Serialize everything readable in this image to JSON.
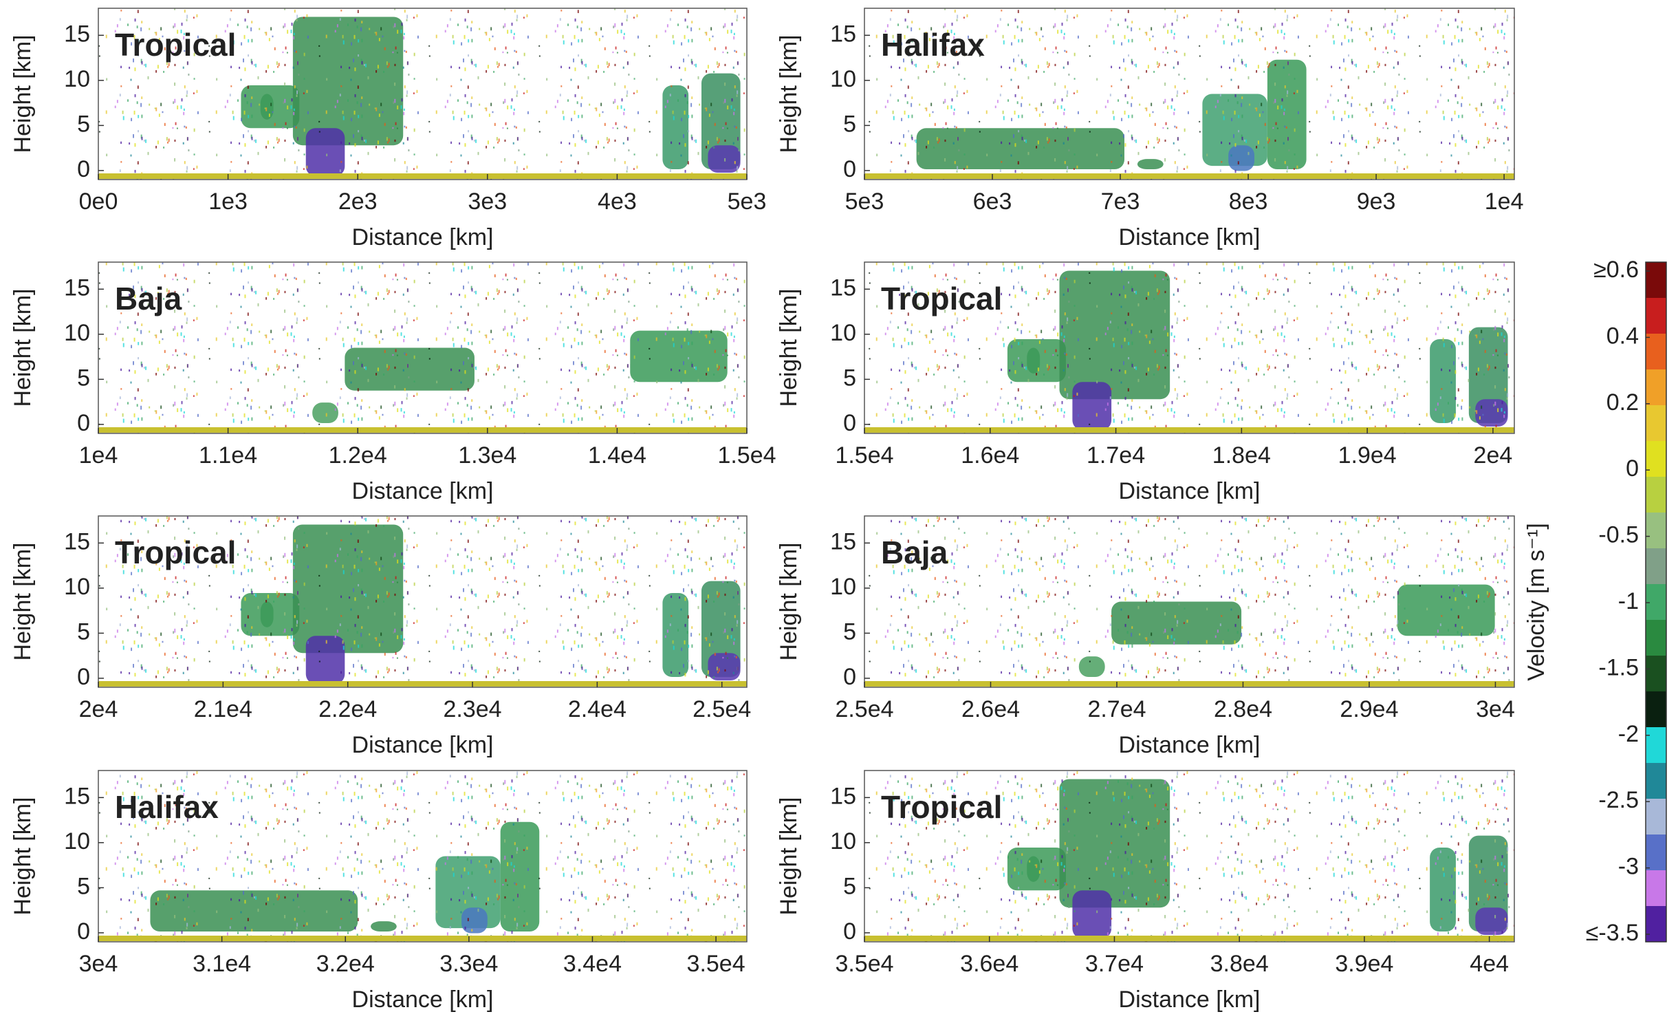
{
  "chart_data": [
    {
      "type": "curtain",
      "title": "Tropical",
      "title_color": "#000000",
      "xlabel": "Distance [km]",
      "ylabel": "Height [km]",
      "xlim": [
        0,
        5000
      ],
      "ylim": [
        -1,
        18
      ],
      "yticks": [
        0,
        5,
        10,
        15
      ],
      "xticks": [
        {
          "value": 0,
          "label": "0e0"
        },
        {
          "value": 1000,
          "label": "1e3"
        },
        {
          "value": 2000,
          "label": "2e3"
        },
        {
          "value": 3000,
          "label": "3e3"
        },
        {
          "value": 4000,
          "label": "4e3"
        },
        {
          "value": 5000,
          "label": "5e3"
        }
      ]
    },
    {
      "type": "curtain",
      "title": "Halifax",
      "title_color": "#5b2d86",
      "xlabel": "Distance [km]",
      "ylabel": "Height [km]",
      "xlim": [
        5000,
        10080
      ],
      "ylim": [
        -1,
        18
      ],
      "yticks": [
        0,
        5,
        10,
        15
      ],
      "xticks": [
        {
          "value": 5000,
          "label": "5e3"
        },
        {
          "value": 6000,
          "label": "6e3"
        },
        {
          "value": 7000,
          "label": "7e3"
        },
        {
          "value": 8000,
          "label": "8e3"
        },
        {
          "value": 9000,
          "label": "9e3"
        },
        {
          "value": 10000,
          "label": "1e4"
        }
      ]
    },
    {
      "type": "curtain",
      "title": "Baja",
      "title_color": "#2166b0",
      "xlabel": "Distance [km]",
      "ylabel": "Height [km]",
      "xlim": [
        10000,
        15000
      ],
      "ylim": [
        -1,
        18
      ],
      "yticks": [
        0,
        5,
        10,
        15
      ],
      "xticks": [
        {
          "value": 10000,
          "label": "1e4"
        },
        {
          "value": 11000,
          "label": "1.1e4"
        },
        {
          "value": 12000,
          "label": "1.2e4"
        },
        {
          "value": 13000,
          "label": "1.3e4"
        },
        {
          "value": 14000,
          "label": "1.4e4"
        },
        {
          "value": 15000,
          "label": "1.5e4"
        }
      ]
    },
    {
      "type": "curtain",
      "title": "Tropical",
      "title_color": "#5fa8e8",
      "xlabel": "Distance [km]",
      "ylabel": "Height [km]",
      "xlim": [
        15000,
        20170
      ],
      "ylim": [
        -1,
        18
      ],
      "yticks": [
        0,
        5,
        10,
        15
      ],
      "xticks": [
        {
          "value": 15000,
          "label": "1.5e4"
        },
        {
          "value": 16000,
          "label": "1.6e4"
        },
        {
          "value": 17000,
          "label": "1.7e4"
        },
        {
          "value": 18000,
          "label": "1.8e4"
        },
        {
          "value": 19000,
          "label": "1.9e4"
        },
        {
          "value": 20000,
          "label": "2e4"
        }
      ]
    },
    {
      "type": "curtain",
      "title": "Tropical",
      "title_color": "#1e9a3c",
      "xlabel": "Distance [km]",
      "ylabel": "Height [km]",
      "xlim": [
        20000,
        25200
      ],
      "ylim": [
        -1,
        18
      ],
      "yticks": [
        0,
        5,
        10,
        15
      ],
      "xticks": [
        {
          "value": 20000,
          "label": "2e4"
        },
        {
          "value": 21000,
          "label": "2.1e4"
        },
        {
          "value": 22000,
          "label": "2.2e4"
        },
        {
          "value": 23000,
          "label": "2.3e4"
        },
        {
          "value": 24000,
          "label": "2.4e4"
        },
        {
          "value": 25000,
          "label": "2.5e4"
        }
      ]
    },
    {
      "type": "curtain",
      "title": "Baja",
      "title_color": "#e8c53a",
      "xlabel": "Distance [km]",
      "ylabel": "Height [km]",
      "xlim": [
        25000,
        30150
      ],
      "ylim": [
        -1,
        18
      ],
      "yticks": [
        0,
        5,
        10,
        15
      ],
      "xticks": [
        {
          "value": 25000,
          "label": "2.5e4"
        },
        {
          "value": 26000,
          "label": "2.6e4"
        },
        {
          "value": 27000,
          "label": "2.7e4"
        },
        {
          "value": 28000,
          "label": "2.8e4"
        },
        {
          "value": 29000,
          "label": "2.9e4"
        },
        {
          "value": 30000,
          "label": "3e4"
        }
      ]
    },
    {
      "type": "curtain",
      "title": "Halifax",
      "title_color": "#e8812a",
      "xlabel": "Distance [km]",
      "ylabel": "Height [km]",
      "xlim": [
        30000,
        35250
      ],
      "ylim": [
        -1,
        18
      ],
      "yticks": [
        0,
        5,
        10,
        15
      ],
      "xticks": [
        {
          "value": 30000,
          "label": "3e4"
        },
        {
          "value": 31000,
          "label": "3.1e4"
        },
        {
          "value": 32000,
          "label": "3.2e4"
        },
        {
          "value": 33000,
          "label": "3.3e4"
        },
        {
          "value": 34000,
          "label": "3.4e4"
        },
        {
          "value": 35000,
          "label": "3.5e4"
        }
      ]
    },
    {
      "type": "curtain",
      "title": "Tropical",
      "title_color": "#c8281e",
      "xlabel": "Distance [km]",
      "ylabel": "Height [km]",
      "xlim": [
        35000,
        40200
      ],
      "ylim": [
        -1,
        18
      ],
      "yticks": [
        0,
        5,
        10,
        15
      ],
      "xticks": [
        {
          "value": 35000,
          "label": "3.5e4"
        },
        {
          "value": 36000,
          "label": "3.6e4"
        },
        {
          "value": 37000,
          "label": "3.7e4"
        },
        {
          "value": 38000,
          "label": "3.8e4"
        },
        {
          "value": 39000,
          "label": "3.9e4"
        },
        {
          "value": 40000,
          "label": "4e4"
        }
      ]
    }
  ],
  "colorbar": {
    "label": "Velocity [m s⁻¹]",
    "ticks": [
      {
        "value": 0.6,
        "label": "≥0.6"
      },
      0.4,
      0.2,
      0,
      -0.5,
      -1,
      -1.5,
      -2,
      -2.5,
      -3,
      {
        "value": -3.5,
        "label": "≤-3.5"
      }
    ],
    "colors": [
      "#7a0a0a",
      "#c81e1e",
      "#e8601e",
      "#f0a028",
      "#e8c830",
      "#e0e020",
      "#b8d040",
      "#98c080",
      "#80a088",
      "#40a868",
      "#2a8a40",
      "#1a5020",
      "#0a2010",
      "#20d8d8",
      "#208898",
      "#a8b8d8",
      "#5870c8",
      "#c878e8",
      "#5020a0"
    ]
  }
}
